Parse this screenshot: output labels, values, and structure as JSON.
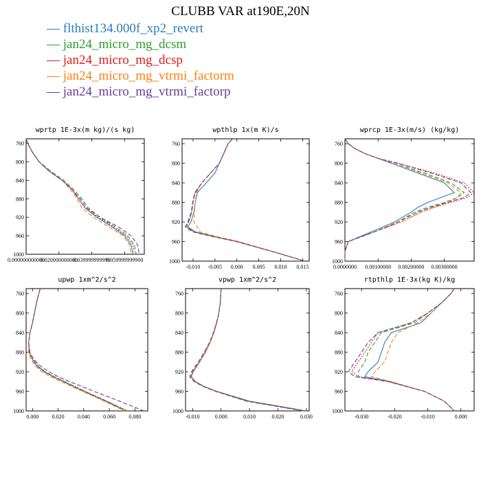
{
  "title": "CLUBB VAR at190E,20N",
  "legend": [
    {
      "label": "flthist134.000f_xp2_revert",
      "color": "#2b7bb9",
      "dash": "solid"
    },
    {
      "label": "jan24_micro_mg_dcsm",
      "color": "#2ca02c",
      "dash": "dashed"
    },
    {
      "label": "jan24_micro_mg_dcsp",
      "color": "#e41a1c",
      "dash": "dotted"
    },
    {
      "label": "jan24_micro_mg_vtrmi_factorm",
      "color": "#ff7f0e",
      "dash": "dashed"
    },
    {
      "label": "jan24_micro_mg_vtrmi_factorp",
      "color": "#6a3d9a",
      "dash": "dashed"
    }
  ],
  "chart_data": [
    {
      "type": "line",
      "title": "wprtp  1E-3x(m kg)/(s kg)",
      "xlim": [
        0,
        0.072
      ],
      "ylim": [
        1000,
        750
      ],
      "xticks": [
        0,
        0.02,
        0.04,
        0.06
      ],
      "xtick_labels": [
        "0.000000000000",
        "0.020000000000",
        "0.039999999999",
        "0.059999999900"
      ],
      "yticks": [
        760,
        800,
        840,
        880,
        920,
        960,
        1000
      ],
      "y": [
        750,
        760,
        780,
        800,
        820,
        840,
        860,
        880,
        900,
        920,
        940,
        960,
        980,
        1000
      ],
      "series": [
        {
          "name": "flthist134.000f_xp2_revert",
          "values": [
            0.0,
            0.001,
            0.004,
            0.008,
            0.014,
            0.022,
            0.028,
            0.032,
            0.036,
            0.043,
            0.052,
            0.06,
            0.064,
            0.065
          ]
        },
        {
          "name": "jan24_micro_mg_dcsm",
          "values": [
            0.0,
            0.001,
            0.004,
            0.008,
            0.015,
            0.023,
            0.029,
            0.034,
            0.038,
            0.045,
            0.054,
            0.062,
            0.066,
            0.067
          ]
        },
        {
          "name": "jan24_micro_mg_dcsp",
          "values": [
            0.0,
            0.001,
            0.004,
            0.008,
            0.014,
            0.022,
            0.028,
            0.032,
            0.036,
            0.044,
            0.053,
            0.061,
            0.065,
            0.066
          ]
        },
        {
          "name": "jan24_micro_mg_vtrmi_factorm",
          "values": [
            0.0,
            0.001,
            0.004,
            0.008,
            0.014,
            0.022,
            0.027,
            0.031,
            0.034,
            0.041,
            0.05,
            0.059,
            0.063,
            0.064
          ]
        },
        {
          "name": "jan24_micro_mg_vtrmi_factorp",
          "values": [
            0.0,
            0.001,
            0.004,
            0.008,
            0.014,
            0.022,
            0.028,
            0.033,
            0.037,
            0.045,
            0.056,
            0.064,
            0.068,
            0.069
          ]
        }
      ]
    },
    {
      "type": "line",
      "title": "wpthlp  1x(m K)/s",
      "xlim": [
        -0.0125,
        0.0165
      ],
      "ylim": [
        1000,
        750
      ],
      "xticks": [
        -0.01,
        -0.005,
        0.0,
        0.005,
        0.01,
        0.015
      ],
      "xtick_labels": [
        "-0.010",
        "-0.005",
        "0.000",
        "0.005",
        "0.010",
        "0.015"
      ],
      "yticks": [
        760,
        800,
        840,
        880,
        920,
        960,
        1000
      ],
      "y": [
        750,
        760,
        780,
        800,
        820,
        840,
        860,
        880,
        900,
        920,
        930,
        940,
        950,
        960,
        980,
        1000
      ],
      "series": [
        {
          "name": "flthist134.000f_xp2_revert",
          "values": [
            -0.001,
            -0.002,
            -0.003,
            -0.004,
            -0.005,
            -0.007,
            -0.009,
            -0.0095,
            -0.0098,
            -0.0105,
            -0.0112,
            -0.0095,
            -0.005,
            0.0,
            0.008,
            0.0155
          ]
        },
        {
          "name": "jan24_micro_mg_dcsm",
          "values": [
            -0.001,
            -0.002,
            -0.003,
            -0.004,
            -0.006,
            -0.008,
            -0.0095,
            -0.01,
            -0.0103,
            -0.011,
            -0.0115,
            -0.0098,
            -0.0052,
            0.0,
            0.008,
            0.0155
          ]
        },
        {
          "name": "jan24_micro_mg_dcsp",
          "values": [
            -0.001,
            -0.002,
            -0.003,
            -0.004,
            -0.006,
            -0.008,
            -0.0095,
            -0.01,
            -0.0103,
            -0.011,
            -0.0115,
            -0.0098,
            -0.0052,
            0.0,
            0.008,
            0.0155
          ]
        },
        {
          "name": "jan24_micro_mg_vtrmi_factorm",
          "values": [
            -0.001,
            -0.002,
            -0.003,
            -0.004,
            -0.006,
            -0.008,
            -0.0092,
            -0.0095,
            -0.0097,
            -0.0098,
            -0.009,
            -0.0085,
            -0.0045,
            0.0005,
            0.008,
            0.0155
          ]
        },
        {
          "name": "jan24_micro_mg_vtrmi_factorp",
          "values": [
            -0.001,
            -0.002,
            -0.003,
            -0.004,
            -0.006,
            -0.008,
            -0.0096,
            -0.0101,
            -0.0104,
            -0.0112,
            -0.0118,
            -0.0102,
            -0.0055,
            -0.0002,
            0.008,
            0.0155
          ]
        }
      ]
    },
    {
      "type": "line",
      "title": "wprcp  1E-3x(m/s) (kg/kg)",
      "xlim": [
        0,
        0.0039
      ],
      "ylim": [
        1000,
        750
      ],
      "xticks": [
        0,
        0.001,
        0.002,
        0.003
      ],
      "xtick_labels": [
        "0.0000000",
        "0.00100000",
        "0.00200000",
        "0.00300000"
      ],
      "yticks": [
        760,
        800,
        840,
        880,
        920,
        960,
        1000
      ],
      "y": [
        750,
        760,
        770,
        780,
        790,
        800,
        820,
        840,
        860,
        870,
        880,
        890,
        900,
        920,
        940,
        960,
        980,
        1000
      ],
      "series": [
        {
          "name": "flthist134.000f_xp2_revert",
          "values": [
            0.0,
            0.0001,
            0.0003,
            0.0006,
            0.001,
            0.0014,
            0.0022,
            0.003,
            0.0033,
            0.0029,
            0.0025,
            0.0022,
            0.002,
            0.0015,
            0.0008,
            0.0001,
            0.0,
            0.0
          ]
        },
        {
          "name": "jan24_micro_mg_dcsm",
          "values": [
            0.0,
            0.0001,
            0.0003,
            0.0006,
            0.001,
            0.0015,
            0.0024,
            0.0032,
            0.0036,
            0.0034,
            0.003,
            0.0025,
            0.0021,
            0.0016,
            0.0009,
            0.0001,
            0.0,
            0.0
          ]
        },
        {
          "name": "jan24_micro_mg_dcsp",
          "values": [
            0.0,
            0.0001,
            0.0003,
            0.0006,
            0.001,
            0.0016,
            0.0027,
            0.0036,
            0.0039,
            0.0037,
            0.0032,
            0.0027,
            0.0023,
            0.0017,
            0.0009,
            0.0001,
            0.0,
            0.0
          ]
        },
        {
          "name": "jan24_micro_mg_vtrmi_factorm",
          "values": [
            0.0,
            0.0001,
            0.0003,
            0.0006,
            0.001,
            0.0015,
            0.0023,
            0.0031,
            0.0035,
            0.0034,
            0.0031,
            0.0027,
            0.0023,
            0.0017,
            0.0009,
            0.0001,
            0.0,
            0.0
          ]
        },
        {
          "name": "jan24_micro_mg_vtrmi_factorp",
          "values": [
            0.0,
            0.0001,
            0.0003,
            0.0006,
            0.001,
            0.0016,
            0.0026,
            0.0035,
            0.0038,
            0.0036,
            0.0031,
            0.0026,
            0.0022,
            0.0016,
            0.0009,
            0.0001,
            0.0,
            0.0
          ]
        }
      ]
    },
    {
      "type": "line",
      "title": "upwp  1xm^2/s^2",
      "xlim": [
        -0.005,
        0.09
      ],
      "ylim": [
        1000,
        750
      ],
      "xticks": [
        0,
        0.02,
        0.04,
        0.06,
        0.08
      ],
      "xtick_labels": [
        "0.000",
        "0.020",
        "0.040",
        "0.060",
        "0.080"
      ],
      "yticks": [
        760,
        800,
        840,
        880,
        920,
        960,
        1000
      ],
      "y": [
        750,
        760,
        780,
        800,
        820,
        840,
        860,
        880,
        890,
        900,
        910,
        920,
        930,
        940,
        960,
        980,
        1000
      ],
      "series": [
        {
          "name": "flthist134.000f_xp2_revert",
          "values": [
            0.006,
            0.005,
            0.003,
            0.0015,
            0.0,
            -0.002,
            -0.003,
            -0.0025,
            -0.001,
            0.001,
            0.004,
            0.009,
            0.016,
            0.024,
            0.04,
            0.057,
            0.073
          ]
        },
        {
          "name": "jan24_micro_mg_dcsm",
          "values": [
            0.006,
            0.005,
            0.003,
            0.0015,
            0.0,
            -0.002,
            -0.003,
            -0.0025,
            -0.001,
            0.002,
            0.005,
            0.01,
            0.017,
            0.025,
            0.041,
            0.058,
            0.074
          ]
        },
        {
          "name": "jan24_micro_mg_dcsp",
          "values": [
            0.006,
            0.005,
            0.003,
            0.0015,
            0.0,
            -0.002,
            -0.003,
            -0.0025,
            -0.001,
            0.002,
            0.005,
            0.01,
            0.017,
            0.025,
            0.041,
            0.058,
            0.074
          ]
        },
        {
          "name": "jan24_micro_mg_vtrmi_factorm",
          "values": [
            0.006,
            0.005,
            0.003,
            0.0015,
            0.0,
            -0.002,
            -0.003,
            -0.003,
            -0.002,
            0.0,
            0.003,
            0.007,
            0.014,
            0.022,
            0.039,
            0.056,
            0.072
          ]
        },
        {
          "name": "jan24_micro_mg_vtrmi_factorp",
          "values": [
            0.006,
            0.005,
            0.003,
            0.0015,
            0.0,
            -0.002,
            -0.003,
            -0.002,
            0.0,
            0.003,
            0.007,
            0.013,
            0.02,
            0.029,
            0.048,
            0.068,
            0.087
          ]
        }
      ]
    },
    {
      "type": "line",
      "title": "vpwp  1xm^2/s^2",
      "xlim": [
        -0.0125,
        0.031
      ],
      "ylim": [
        1000,
        750
      ],
      "xticks": [
        -0.01,
        0.0,
        0.01,
        0.02,
        0.03
      ],
      "xtick_labels": [
        "-0.010",
        "0.000",
        "0.010",
        "0.020",
        "0.030"
      ],
      "yticks": [
        760,
        800,
        840,
        880,
        920,
        960,
        1000
      ],
      "y": [
        750,
        760,
        780,
        800,
        820,
        840,
        860,
        880,
        900,
        920,
        930,
        940,
        950,
        960,
        980,
        1000
      ],
      "series": [
        {
          "name": "flthist134.000f_xp2_revert",
          "values": [
            0.0,
            -0.0001,
            -0.0003,
            -0.0008,
            -0.0015,
            -0.0025,
            -0.0038,
            -0.0055,
            -0.0075,
            -0.0098,
            -0.0105,
            -0.009,
            -0.006,
            -0.0015,
            0.01,
            0.03
          ]
        },
        {
          "name": "jan24_micro_mg_dcsm",
          "values": [
            0.0,
            -0.0001,
            -0.0003,
            -0.0008,
            -0.0016,
            -0.0027,
            -0.004,
            -0.0058,
            -0.0078,
            -0.01,
            -0.0107,
            -0.0092,
            -0.0062,
            -0.0018,
            0.009,
            0.029
          ]
        },
        {
          "name": "jan24_micro_mg_dcsp",
          "values": [
            0.0,
            -0.0001,
            -0.0003,
            -0.0008,
            -0.0016,
            -0.0026,
            -0.0039,
            -0.0057,
            -0.0077,
            -0.0099,
            -0.0106,
            -0.0091,
            -0.006,
            -0.0016,
            0.0095,
            0.0295
          ]
        },
        {
          "name": "jan24_micro_mg_vtrmi_factorm",
          "values": [
            0.0,
            -0.0001,
            -0.0003,
            -0.0008,
            -0.0015,
            -0.0025,
            -0.0038,
            -0.0056,
            -0.0076,
            -0.0102,
            -0.0108,
            -0.0094,
            -0.0063,
            -0.0019,
            0.009,
            0.029
          ]
        },
        {
          "name": "jan24_micro_mg_vtrmi_factorp",
          "values": [
            0.0,
            -0.0001,
            -0.0003,
            -0.0008,
            -0.0016,
            -0.0027,
            -0.0041,
            -0.0059,
            -0.008,
            -0.0104,
            -0.011,
            -0.0095,
            -0.0064,
            -0.002,
            0.009,
            0.029
          ]
        }
      ]
    },
    {
      "type": "line",
      "title": "rtpthlp  1E-3x(kg K)/kg",
      "xlim": [
        -0.035,
        0.004
      ],
      "ylim": [
        1000,
        750
      ],
      "xticks": [
        -0.03,
        -0.02,
        -0.01,
        0.0
      ],
      "xtick_labels": [
        "-0.030",
        "-0.020",
        "-0.010",
        "0.000"
      ],
      "yticks": [
        760,
        800,
        840,
        880,
        920,
        960,
        1000
      ],
      "y": [
        750,
        760,
        780,
        800,
        820,
        840,
        860,
        880,
        900,
        920,
        930,
        940,
        960,
        980,
        1000
      ],
      "series": [
        {
          "name": "flthist134.000f_xp2_revert",
          "values": [
            -0.002,
            -0.003,
            -0.006,
            -0.009,
            -0.012,
            -0.021,
            -0.023,
            -0.024,
            -0.025,
            -0.028,
            -0.029,
            -0.0215,
            -0.011,
            -0.005,
            -0.002
          ]
        },
        {
          "name": "jan24_micro_mg_dcsm",
          "values": [
            -0.002,
            -0.003,
            -0.006,
            -0.01,
            -0.014,
            -0.024,
            -0.026,
            -0.028,
            -0.029,
            -0.031,
            -0.031,
            -0.022,
            -0.011,
            -0.005,
            -0.002
          ]
        },
        {
          "name": "jan24_micro_mg_dcsp",
          "values": [
            -0.002,
            -0.003,
            -0.006,
            -0.01,
            -0.015,
            -0.025,
            -0.027,
            -0.029,
            -0.031,
            -0.033,
            -0.031,
            -0.022,
            -0.011,
            -0.005,
            -0.002
          ]
        },
        {
          "name": "jan24_micro_mg_vtrmi_factorm",
          "values": [
            -0.002,
            -0.003,
            -0.006,
            -0.009,
            -0.013,
            -0.019,
            -0.021,
            -0.022,
            -0.023,
            -0.026,
            -0.027,
            -0.021,
            -0.011,
            -0.005,
            -0.002
          ]
        },
        {
          "name": "jan24_micro_mg_vtrmi_factorp",
          "values": [
            -0.002,
            -0.003,
            -0.006,
            -0.01,
            -0.015,
            -0.025,
            -0.028,
            -0.03,
            -0.032,
            -0.034,
            -0.032,
            -0.022,
            -0.011,
            -0.005,
            -0.002
          ]
        }
      ]
    }
  ]
}
